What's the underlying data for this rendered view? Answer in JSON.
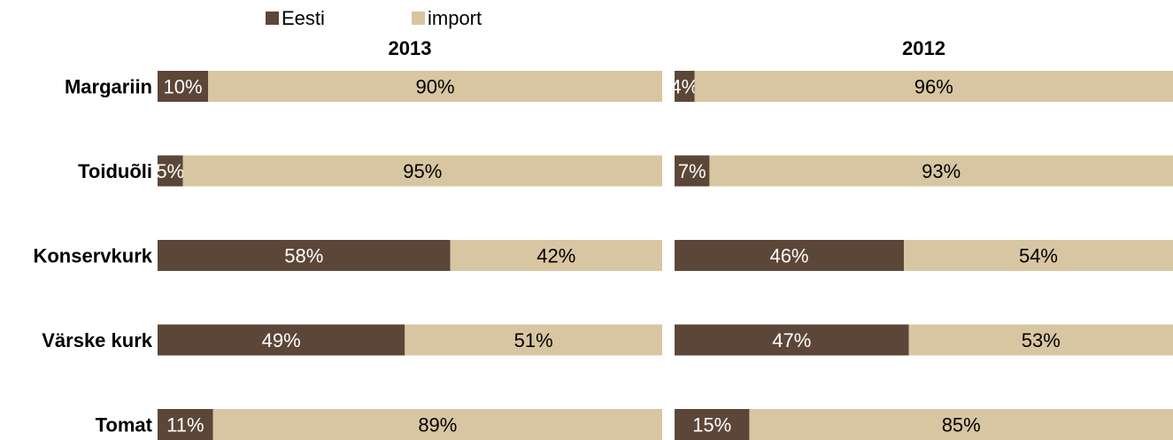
{
  "chart_data": {
    "type": "bar",
    "stacked": true,
    "orientation": "horizontal",
    "categories": [
      "Margariin",
      "Toiduõli",
      "Konservkurk",
      "Värske kurk",
      "Tomat"
    ],
    "legend": {
      "position": "top",
      "items": [
        {
          "name": "Eesti",
          "color": "#5c4637"
        },
        {
          "name": "import",
          "color": "#d8c6a2"
        }
      ]
    },
    "panels": [
      {
        "title": "2013",
        "series": [
          {
            "name": "Eesti",
            "values": [
              10,
              5,
              58,
              49,
              11
            ],
            "labels": [
              "10%",
              "5%",
              "58%",
              "49%",
              "11%"
            ]
          },
          {
            "name": "import",
            "values": [
              90,
              95,
              42,
              51,
              89
            ],
            "labels": [
              "90%",
              "95%",
              "42%",
              "51%",
              "89%"
            ]
          }
        ]
      },
      {
        "title": "2012",
        "series": [
          {
            "name": "Eesti",
            "values": [
              4,
              7,
              46,
              47,
              15
            ],
            "labels": [
              "4%",
              "7%",
              "46%",
              "47%",
              "15%"
            ]
          },
          {
            "name": "import",
            "values": [
              96,
              93,
              54,
              53,
              85
            ],
            "labels": [
              "96%",
              "93%",
              "54%",
              "53%",
              "85%"
            ]
          }
        ]
      }
    ],
    "xlim": [
      0,
      100
    ],
    "grid": false
  }
}
